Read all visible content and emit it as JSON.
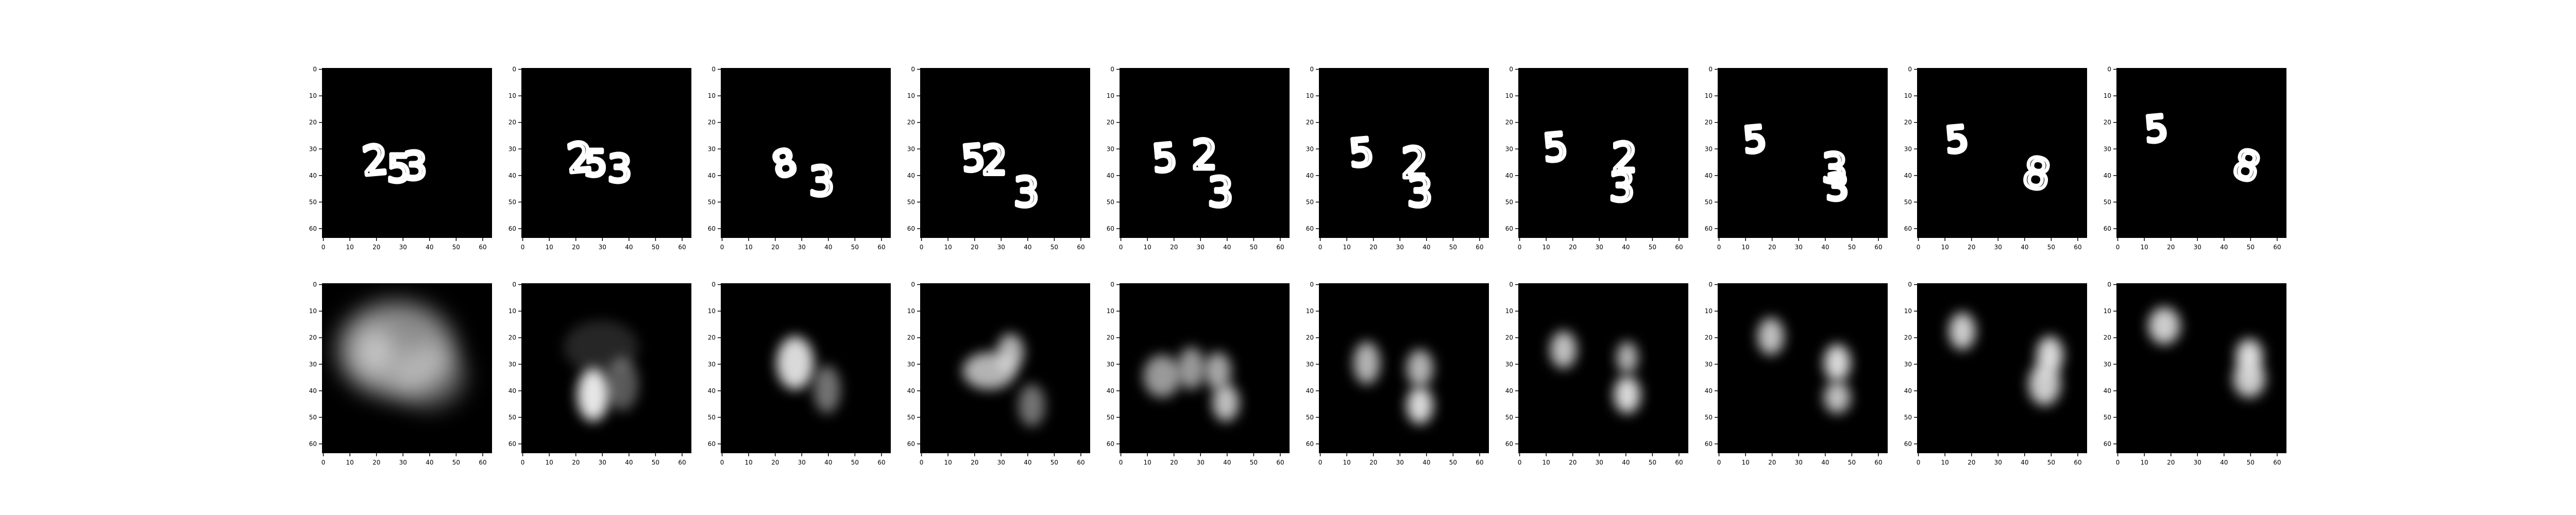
{
  "figure": {
    "rows": [
      {
        "name": "input-frames",
        "panels": [
          {
            "digits": [
              {
                "ch": "2",
                "x": 20,
                "y": 35,
                "s": 1.0,
                "r": -5
              },
              {
                "ch": "5",
                "x": 29,
                "y": 38,
                "s": 0.95,
                "r": 0
              },
              {
                "ch": "3",
                "x": 35,
                "y": 37,
                "s": 0.95,
                "r": 0
              }
            ]
          },
          {
            "digits": [
              {
                "ch": "2",
                "x": 22,
                "y": 34,
                "s": 1.0,
                "r": -5
              },
              {
                "ch": "5",
                "x": 28,
                "y": 36,
                "s": 0.9,
                "r": 0
              },
              {
                "ch": "3",
                "x": 37,
                "y": 38,
                "s": 0.95,
                "r": 0
              }
            ]
          },
          {
            "digits": [
              {
                "ch": "8",
                "x": 24,
                "y": 36,
                "s": 0.9,
                "r": -15
              },
              {
                "ch": "3",
                "x": 38,
                "y": 43,
                "s": 1.0,
                "r": 0
              }
            ]
          },
          {
            "digits": [
              {
                "ch": "5",
                "x": 20,
                "y": 34,
                "s": 0.9,
                "r": -5
              },
              {
                "ch": "2",
                "x": 28,
                "y": 35,
                "s": 1.0,
                "r": 0
              },
              {
                "ch": "3",
                "x": 40,
                "y": 47,
                "s": 1.0,
                "r": 0
              }
            ]
          },
          {
            "digits": [
              {
                "ch": "5",
                "x": 17,
                "y": 34,
                "s": 0.95,
                "r": -5
              },
              {
                "ch": "2",
                "x": 32,
                "y": 33,
                "s": 1.0,
                "r": 0
              },
              {
                "ch": "3",
                "x": 38,
                "y": 47,
                "s": 1.0,
                "r": 0
              }
            ]
          },
          {
            "digits": [
              {
                "ch": "5",
                "x": 16,
                "y": 32,
                "s": 0.95,
                "r": -5
              },
              {
                "ch": "2",
                "x": 36,
                "y": 36,
                "s": 1.05,
                "r": 0
              },
              {
                "ch": "3",
                "x": 38,
                "y": 47,
                "s": 1.0,
                "r": 0
              }
            ]
          },
          {
            "digits": [
              {
                "ch": "5",
                "x": 14,
                "y": 30,
                "s": 0.95,
                "r": -5
              },
              {
                "ch": "2",
                "x": 40,
                "y": 34,
                "s": 1.0,
                "r": 0
              },
              {
                "ch": "3",
                "x": 39,
                "y": 45,
                "s": 1.0,
                "r": 0
              }
            ]
          },
          {
            "digits": [
              {
                "ch": "5",
                "x": 14,
                "y": 27,
                "s": 0.9,
                "r": -5
              },
              {
                "ch": "3",
                "x": 44,
                "y": 38,
                "s": 1.0,
                "r": 0
              },
              {
                "ch": "3",
                "x": 45,
                "y": 45,
                "s": 0.9,
                "r": 0
              }
            ]
          },
          {
            "digits": [
              {
                "ch": "5",
                "x": 15,
                "y": 27,
                "s": 0.9,
                "r": -5
              },
              {
                "ch": "8",
                "x": 45,
                "y": 40,
                "s": 1.05,
                "r": 10
              }
            ]
          },
          {
            "digits": [
              {
                "ch": "5",
                "x": 15,
                "y": 23,
                "s": 0.9,
                "r": -5
              },
              {
                "ch": "8",
                "x": 49,
                "y": 37,
                "s": 1.0,
                "r": 15
              }
            ]
          }
        ]
      },
      {
        "name": "predicted-frames",
        "panels": [
          {
            "blobs": [
              {
                "x": 28,
                "y": 25,
                "rx": 22,
                "ry": 18,
                "o": 0.55
              },
              {
                "x": 20,
                "y": 26,
                "rx": 7,
                "ry": 9,
                "o": 0.5
              },
              {
                "x": 40,
                "y": 35,
                "rx": 14,
                "ry": 12,
                "o": 0.35
              }
            ]
          },
          {
            "blobs": [
              {
                "x": 27,
                "y": 42,
                "rx": 6,
                "ry": 10,
                "o": 0.9
              },
              {
                "x": 38,
                "y": 38,
                "rx": 6,
                "ry": 10,
                "o": 0.35
              },
              {
                "x": 30,
                "y": 24,
                "rx": 14,
                "ry": 10,
                "o": 0.15
              }
            ]
          },
          {
            "blobs": [
              {
                "x": 28,
                "y": 30,
                "rx": 7,
                "ry": 10,
                "o": 0.85
              },
              {
                "x": 40,
                "y": 40,
                "rx": 5,
                "ry": 9,
                "o": 0.45
              }
            ]
          },
          {
            "blobs": [
              {
                "x": 26,
                "y": 33,
                "rx": 10,
                "ry": 7,
                "o": 0.7
              },
              {
                "x": 34,
                "y": 26,
                "rx": 5,
                "ry": 7,
                "o": 0.7
              },
              {
                "x": 42,
                "y": 46,
                "rx": 5,
                "ry": 8,
                "o": 0.45
              }
            ]
          },
          {
            "blobs": [
              {
                "x": 16,
                "y": 35,
                "rx": 7,
                "ry": 8,
                "o": 0.6
              },
              {
                "x": 27,
                "y": 32,
                "rx": 5,
                "ry": 8,
                "o": 0.6
              },
              {
                "x": 37,
                "y": 33,
                "rx": 5,
                "ry": 7,
                "o": 0.65
              },
              {
                "x": 40,
                "y": 45,
                "rx": 5,
                "ry": 7,
                "o": 0.75
              }
            ]
          },
          {
            "blobs": [
              {
                "x": 18,
                "y": 30,
                "rx": 5,
                "ry": 8,
                "o": 0.7
              },
              {
                "x": 38,
                "y": 32,
                "rx": 5,
                "ry": 7,
                "o": 0.7
              },
              {
                "x": 38,
                "y": 46,
                "rx": 5,
                "ry": 7,
                "o": 0.85
              }
            ]
          },
          {
            "blobs": [
              {
                "x": 17,
                "y": 25,
                "rx": 5,
                "ry": 7,
                "o": 0.75
              },
              {
                "x": 41,
                "y": 28,
                "rx": 4,
                "ry": 6,
                "o": 0.7
              },
              {
                "x": 41,
                "y": 42,
                "rx": 5,
                "ry": 7,
                "o": 0.85
              }
            ]
          },
          {
            "blobs": [
              {
                "x": 20,
                "y": 20,
                "rx": 5,
                "ry": 7,
                "o": 0.75
              },
              {
                "x": 45,
                "y": 30,
                "rx": 5,
                "ry": 7,
                "o": 0.85
              },
              {
                "x": 45,
                "y": 43,
                "rx": 5,
                "ry": 6,
                "o": 0.75
              }
            ]
          },
          {
            "blobs": [
              {
                "x": 17,
                "y": 18,
                "rx": 5,
                "ry": 7,
                "o": 0.8
              },
              {
                "x": 50,
                "y": 27,
                "rx": 5,
                "ry": 7,
                "o": 0.85
              },
              {
                "x": 48,
                "y": 38,
                "rx": 6,
                "ry": 8,
                "o": 0.8
              }
            ]
          },
          {
            "blobs": [
              {
                "x": 18,
                "y": 16,
                "rx": 6,
                "ry": 7,
                "o": 0.8
              },
              {
                "x": 50,
                "y": 27,
                "rx": 5,
                "ry": 6,
                "o": 0.85
              },
              {
                "x": 50,
                "y": 36,
                "rx": 6,
                "ry": 7,
                "o": 0.8
              }
            ]
          }
        ]
      }
    ],
    "axis": {
      "xticks": [
        "0",
        "10",
        "20",
        "30",
        "40",
        "50",
        "60"
      ],
      "yticks": [
        "0",
        "10",
        "20",
        "30",
        "40",
        "50",
        "60"
      ]
    },
    "colors": {
      "background": "#ffffff",
      "panel": "#000000",
      "digit": "#ffffff",
      "tick": "#000000"
    }
  }
}
